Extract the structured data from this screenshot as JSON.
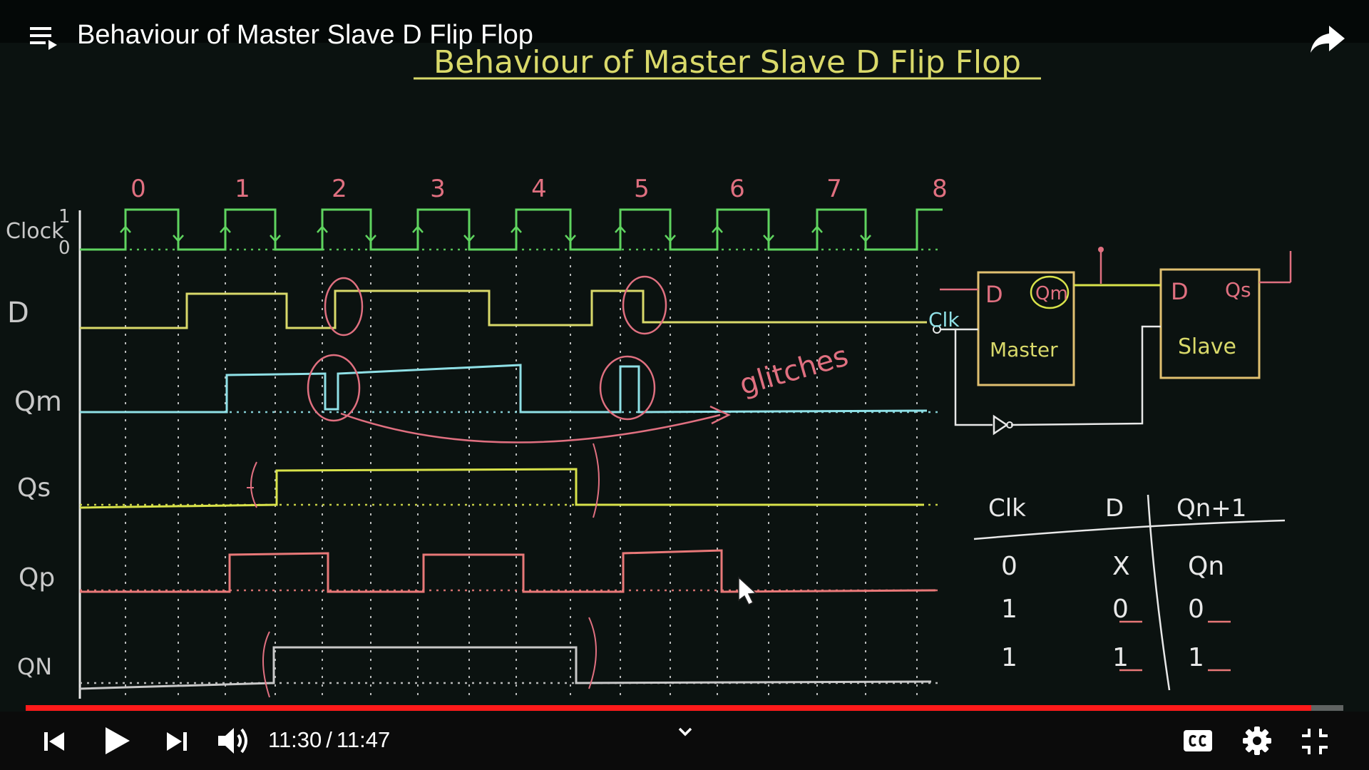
{
  "player": {
    "title": "Behaviour of Master Slave D Flip Flop",
    "current_time": "11:30",
    "separator": "/",
    "duration": "11:47",
    "progress": 0.9757
  },
  "board": {
    "heading": "Behaviour of Master Slave D Flip Flop",
    "clock_numbers": [
      "0",
      "1",
      "2",
      "3",
      "4",
      "5",
      "6",
      "7",
      "8"
    ],
    "signal_labels": [
      "Clock",
      "D",
      "Qm",
      "Qs",
      "Qp",
      "QN"
    ],
    "clock_level_high": "1",
    "clock_level_low": "0",
    "annotation": "glitches",
    "circuit": {
      "master_input": "D",
      "master_output": "Qm",
      "master_label": "Master",
      "slave_input": "D",
      "slave_output": "Qs",
      "slave_label": "Slave",
      "clock_label": "Clk"
    },
    "truth_table": {
      "headers": [
        "Clk",
        "D",
        "Qn+1"
      ],
      "rows": [
        [
          "0",
          "X",
          "Qn"
        ],
        [
          "1",
          "0",
          "0"
        ],
        [
          "1",
          "1",
          "1"
        ]
      ]
    }
  },
  "colors": {
    "board": "#0b1210",
    "clock": "#5fd45f",
    "d": "#d9d96a",
    "qm": "#8fe0e6",
    "qs": "#d8e24a",
    "qp": "#e87878",
    "qn": "#c8c8c8",
    "grid": "#e6e6e6",
    "annotation": "#e07080",
    "box": "#e0c070",
    "progress": "#ff1a1a"
  },
  "icons": {
    "playlist": "playlist-icon",
    "share": "share-icon",
    "previous": "skip-previous-icon",
    "play": "play-icon",
    "next": "skip-next-icon",
    "volume": "volume-icon",
    "chevron": "chevron-down-icon",
    "captions": "captions-icon",
    "settings": "gear-icon",
    "fullscreen_exit": "fullscreen-exit-icon"
  }
}
